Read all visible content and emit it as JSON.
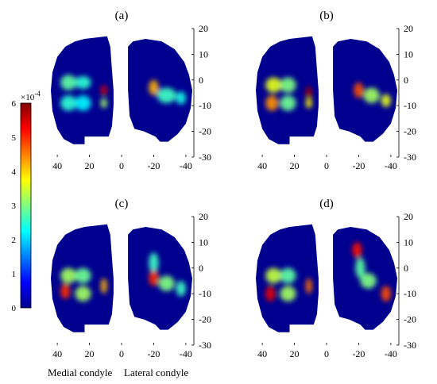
{
  "chart_data": {
    "type": "heatmap",
    "colormap": "jet",
    "x_direction": "reversed",
    "colorbar": {
      "min": 0,
      "max": 6,
      "ticks": [
        "0",
        "1",
        "2",
        "3",
        "4",
        "5",
        "6"
      ],
      "multiplier_base": "×10",
      "multiplier_exponent": "-4"
    },
    "x_ticks": [
      "40",
      "20",
      "0",
      "-20",
      "-40"
    ],
    "x_tick_values": [
      40,
      20,
      0,
      -20,
      -40
    ],
    "y_ticks": [
      "20",
      "10",
      "0",
      "-10",
      "-20",
      "-30"
    ],
    "y_tick_values": [
      20,
      10,
      0,
      -10,
      -20,
      -30
    ],
    "xlim": [
      45,
      -45
    ],
    "ylim": [
      -30,
      20
    ],
    "region_labels": {
      "medial": "Medial condyle",
      "lateral": "Lateral condyle"
    },
    "panels": [
      {
        "title": "(a)",
        "hotspots": [
          {
            "x": 33,
            "y": -1,
            "rx": 5,
            "ry": 3,
            "v": 2.8
          },
          {
            "x": 24,
            "y": -1,
            "rx": 5,
            "ry": 2.5,
            "v": 2.5
          },
          {
            "x": 33,
            "y": -9,
            "rx": 5,
            "ry": 3,
            "v": 2.5
          },
          {
            "x": 24,
            "y": -9,
            "rx": 5,
            "ry": 3,
            "v": 2.2
          },
          {
            "x": 11,
            "y": -4,
            "rx": 2,
            "ry": 2,
            "v": 5.5
          },
          {
            "x": 11,
            "y": -9,
            "rx": 2,
            "ry": 2,
            "v": 3.2
          },
          {
            "x": -20,
            "y": -3,
            "rx": 3,
            "ry": 3,
            "v": 4.2
          },
          {
            "x": -28,
            "y": -6,
            "rx": 6,
            "ry": 3,
            "v": 2.6
          },
          {
            "x": -37,
            "y": -7,
            "rx": 3,
            "ry": 2.5,
            "v": 2.4
          }
        ]
      },
      {
        "title": "(b)",
        "hotspots": [
          {
            "x": 33,
            "y": -2,
            "rx": 5,
            "ry": 3,
            "v": 3.6
          },
          {
            "x": 24,
            "y": -2,
            "rx": 5,
            "ry": 3,
            "v": 3.0
          },
          {
            "x": 34,
            "y": -9,
            "rx": 4,
            "ry": 3,
            "v": 4.4
          },
          {
            "x": 24,
            "y": -9,
            "rx": 5,
            "ry": 3,
            "v": 2.9
          },
          {
            "x": 11,
            "y": -5,
            "rx": 2,
            "ry": 2.5,
            "v": 5.8
          },
          {
            "x": 11,
            "y": -9,
            "rx": 2,
            "ry": 2,
            "v": 3.8
          },
          {
            "x": -20,
            "y": -4,
            "rx": 3,
            "ry": 3,
            "v": 4.8
          },
          {
            "x": -28,
            "y": -6,
            "rx": 5,
            "ry": 3,
            "v": 3.2
          },
          {
            "x": -37,
            "y": -8,
            "rx": 3,
            "ry": 2.5,
            "v": 3.6
          }
        ]
      },
      {
        "title": "(c)",
        "hotspots": [
          {
            "x": 33,
            "y": -3,
            "rx": 5,
            "ry": 3,
            "v": 3.2
          },
          {
            "x": 24,
            "y": -3,
            "rx": 5,
            "ry": 3,
            "v": 2.9
          },
          {
            "x": 35,
            "y": -9,
            "rx": 3,
            "ry": 3,
            "v": 5.0
          },
          {
            "x": 24,
            "y": -10,
            "rx": 5,
            "ry": 3,
            "v": 3.2
          },
          {
            "x": 11,
            "y": -7,
            "rx": 2,
            "ry": 3,
            "v": 4.2
          },
          {
            "x": -20,
            "y": 2,
            "rx": 3,
            "ry": 4,
            "v": 2.6
          },
          {
            "x": -20,
            "y": -4,
            "rx": 3,
            "ry": 3,
            "v": 5.0
          },
          {
            "x": -28,
            "y": -6,
            "rx": 5,
            "ry": 3,
            "v": 3.0
          },
          {
            "x": -37,
            "y": -8,
            "rx": 3,
            "ry": 3,
            "v": 2.6
          }
        ]
      },
      {
        "title": "(d)",
        "hotspots": [
          {
            "x": 33,
            "y": -3,
            "rx": 5,
            "ry": 3,
            "v": 3.4
          },
          {
            "x": 24,
            "y": -3,
            "rx": 5,
            "ry": 3,
            "v": 2.8
          },
          {
            "x": 35,
            "y": -10,
            "rx": 3,
            "ry": 3,
            "v": 5.4
          },
          {
            "x": 24,
            "y": -10,
            "rx": 5,
            "ry": 3,
            "v": 3.2
          },
          {
            "x": 11,
            "y": -7,
            "rx": 2,
            "ry": 3,
            "v": 4.6
          },
          {
            "x": -19,
            "y": 7,
            "rx": 3,
            "ry": 3,
            "v": 5.2
          },
          {
            "x": -21,
            "y": 0,
            "rx": 3,
            "ry": 4,
            "v": 2.8
          },
          {
            "x": -26,
            "y": -5,
            "rx": 5,
            "ry": 3,
            "v": 3.0
          },
          {
            "x": -37,
            "y": -10,
            "rx": 3,
            "ry": 3,
            "v": 4.8
          }
        ]
      }
    ]
  }
}
